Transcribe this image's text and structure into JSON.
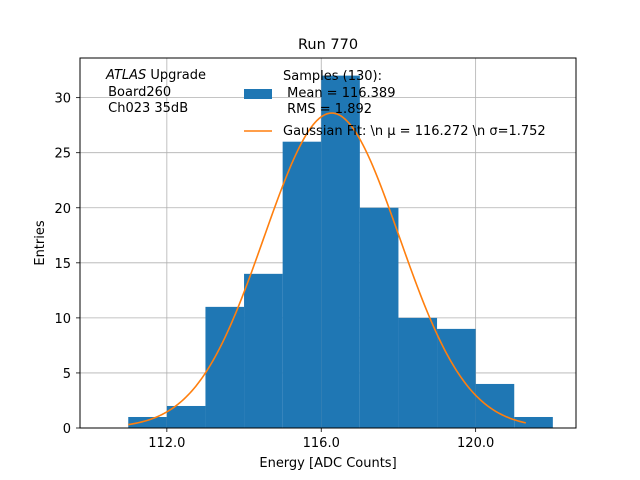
{
  "chart_data": {
    "type": "bar",
    "title": "Run 770",
    "xlabel": "Energy [ADC Counts]",
    "ylabel": "Entries",
    "xlim": [
      109.75,
      122.6
    ],
    "ylim": [
      0,
      33.6
    ],
    "xticks": [
      112.0,
      116.0,
      120.0
    ],
    "xtick_labels": [
      "112.0",
      "116.0",
      "120.0"
    ],
    "yticks": [
      0,
      5,
      10,
      15,
      20,
      25,
      30
    ],
    "ytick_labels": [
      "0",
      "5",
      "10",
      "15",
      "20",
      "25",
      "30"
    ],
    "grid": true,
    "annotation": {
      "line1_italic": "ATLAS",
      "line1_rest": " Upgrade",
      "line2": " Board260",
      "line3": " Ch023 35dB"
    },
    "histogram": {
      "bin_edges": [
        111.0,
        112.0,
        113.0,
        114.0,
        115.0,
        116.0,
        117.0,
        118.0,
        119.0,
        120.0,
        121.0,
        122.0
      ],
      "counts": [
        1,
        2,
        11,
        14,
        26,
        32,
        20,
        10,
        9,
        4,
        1
      ],
      "color": "#1f77b4"
    },
    "fit": {
      "mu": 116.272,
      "sigma": 1.752,
      "amplitude": 28.6,
      "x_range": [
        111.0,
        121.3
      ],
      "color": "#ff7f0e"
    },
    "legend": {
      "position": "top-right",
      "entries": [
        {
          "kind": "bar",
          "lines": [
            "Samples (130):",
            " Mean = 116.389",
            " RMS = 1.892"
          ]
        },
        {
          "kind": "line",
          "lines": [
            "Gaussian Fit: \\n μ = 116.272 \\n σ=1.752"
          ]
        }
      ]
    }
  }
}
